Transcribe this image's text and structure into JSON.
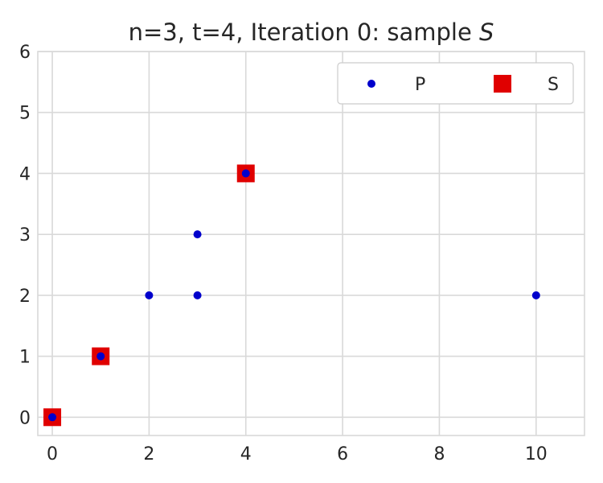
{
  "chart_data": {
    "type": "scatter",
    "title": "n=3, t=4, Iteration 0: sample ",
    "title_italic": "S",
    "xlabel": "",
    "ylabel": "",
    "xlim": [
      -0.3,
      11
    ],
    "ylim": [
      -0.3,
      6
    ],
    "xticks": [
      0,
      2,
      4,
      6,
      8,
      10
    ],
    "yticks": [
      0,
      1,
      2,
      3,
      4,
      5,
      6
    ],
    "grid": true,
    "legend": {
      "placement": "top-right",
      "ncol": 2
    },
    "series": [
      {
        "name": "P",
        "marker": "circle",
        "color": "#0000cc",
        "points": [
          [
            0,
            0
          ],
          [
            1,
            1
          ],
          [
            2,
            2
          ],
          [
            3,
            2
          ],
          [
            3,
            3
          ],
          [
            4,
            4
          ],
          [
            10,
            2
          ]
        ]
      },
      {
        "name": "S",
        "marker": "square",
        "color": "#e00000",
        "points": [
          [
            0,
            0
          ],
          [
            1,
            1
          ],
          [
            4,
            4
          ]
        ]
      }
    ]
  }
}
